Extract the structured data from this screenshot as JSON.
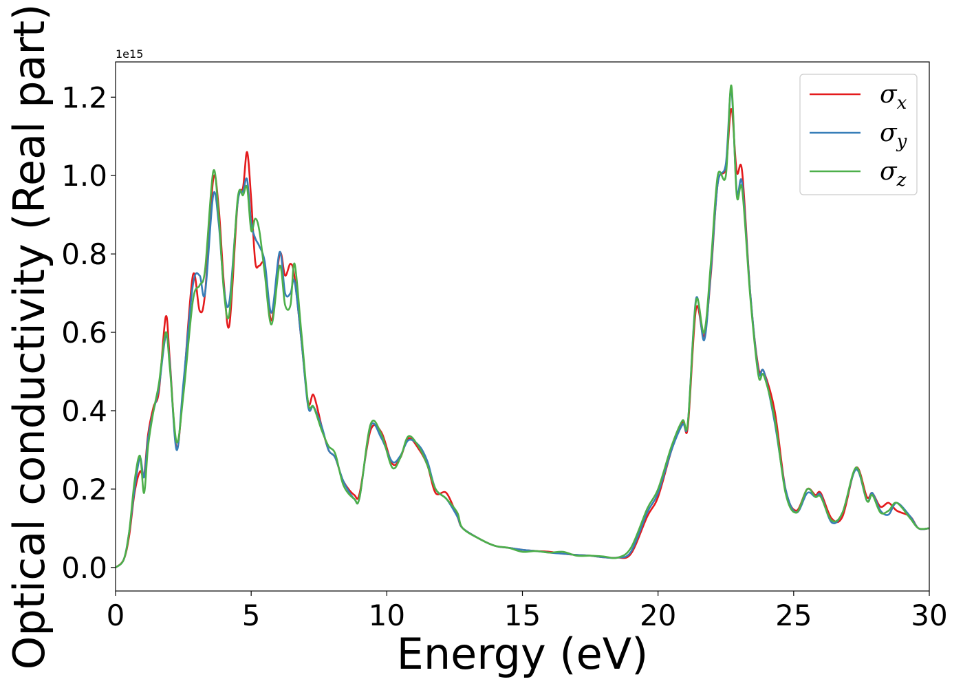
{
  "chart_data": {
    "type": "line",
    "title": "",
    "xlabel": "Energy (eV)",
    "ylabel": "Optical conductivity (Real part)",
    "y_offset_label": "1e15",
    "xlim": [
      0,
      30
    ],
    "ylim": [
      -0.06,
      1.29
    ],
    "x_ticks": [
      0,
      5,
      10,
      15,
      20,
      25,
      30
    ],
    "x_tick_labels": [
      "0",
      "5",
      "10",
      "15",
      "20",
      "25",
      "30"
    ],
    "y_ticks": [
      0.0,
      0.2,
      0.4,
      0.6,
      0.8,
      1.0,
      1.2
    ],
    "y_tick_labels": [
      "0.0",
      "0.2",
      "0.4",
      "0.6",
      "0.8",
      "1.0",
      "1.2"
    ],
    "grid": false,
    "legend_position": "top-right",
    "series": [
      {
        "name": "σ_x",
        "legend_base": "σ",
        "legend_sub": "x",
        "color": "#e41a1c",
        "points": [
          [
            0,
            0
          ],
          [
            0.3,
            0.02
          ],
          [
            0.5,
            0.08
          ],
          [
            0.7,
            0.19
          ],
          [
            0.9,
            0.245
          ],
          [
            1.05,
            0.235
          ],
          [
            1.2,
            0.34
          ],
          [
            1.4,
            0.41
          ],
          [
            1.6,
            0.45
          ],
          [
            1.85,
            0.64
          ],
          [
            2.0,
            0.53
          ],
          [
            2.25,
            0.305
          ],
          [
            2.5,
            0.46
          ],
          [
            2.85,
            0.745
          ],
          [
            3.1,
            0.655
          ],
          [
            3.3,
            0.7
          ],
          [
            3.6,
            0.99
          ],
          [
            3.8,
            0.92
          ],
          [
            4.0,
            0.72
          ],
          [
            4.2,
            0.62
          ],
          [
            4.5,
            0.93
          ],
          [
            4.7,
            0.97
          ],
          [
            4.85,
            1.06
          ],
          [
            5.0,
            0.94
          ],
          [
            5.15,
            0.78
          ],
          [
            5.3,
            0.77
          ],
          [
            5.5,
            0.77
          ],
          [
            5.75,
            0.63
          ],
          [
            6.05,
            0.8
          ],
          [
            6.25,
            0.745
          ],
          [
            6.45,
            0.775
          ],
          [
            6.6,
            0.74
          ],
          [
            6.85,
            0.58
          ],
          [
            7.1,
            0.42
          ],
          [
            7.3,
            0.44
          ],
          [
            7.6,
            0.36
          ],
          [
            7.85,
            0.3
          ],
          [
            8.1,
            0.28
          ],
          [
            8.4,
            0.22
          ],
          [
            8.8,
            0.185
          ],
          [
            9.0,
            0.19
          ],
          [
            9.4,
            0.35
          ],
          [
            9.8,
            0.345
          ],
          [
            10.2,
            0.265
          ],
          [
            10.5,
            0.28
          ],
          [
            10.8,
            0.33
          ],
          [
            11.2,
            0.3
          ],
          [
            11.5,
            0.26
          ],
          [
            11.8,
            0.19
          ],
          [
            12.2,
            0.19
          ],
          [
            12.6,
            0.13
          ],
          [
            12.8,
            0.1
          ],
          [
            13.5,
            0.07
          ],
          [
            14.0,
            0.055
          ],
          [
            14.5,
            0.05
          ],
          [
            15.0,
            0.045
          ],
          [
            15.5,
            0.042
          ],
          [
            16.0,
            0.04
          ],
          [
            16.5,
            0.035
          ],
          [
            17.0,
            0.032
          ],
          [
            17.5,
            0.03
          ],
          [
            18.0,
            0.026
          ],
          [
            18.5,
            0.025
          ],
          [
            19.0,
            0.035
          ],
          [
            19.6,
            0.13
          ],
          [
            20.0,
            0.18
          ],
          [
            20.5,
            0.3
          ],
          [
            20.9,
            0.37
          ],
          [
            21.1,
            0.36
          ],
          [
            21.4,
            0.66
          ],
          [
            21.7,
            0.59
          ],
          [
            21.95,
            0.75
          ],
          [
            22.2,
            0.98
          ],
          [
            22.5,
            1.02
          ],
          [
            22.7,
            1.17
          ],
          [
            22.9,
            1.01
          ],
          [
            23.1,
            1.01
          ],
          [
            23.4,
            0.7
          ],
          [
            23.7,
            0.51
          ],
          [
            23.9,
            0.5
          ],
          [
            24.3,
            0.4
          ],
          [
            24.7,
            0.2
          ],
          [
            25.1,
            0.145
          ],
          [
            25.5,
            0.2
          ],
          [
            25.8,
            0.185
          ],
          [
            26.0,
            0.19
          ],
          [
            26.4,
            0.125
          ],
          [
            26.8,
            0.13
          ],
          [
            27.3,
            0.255
          ],
          [
            27.7,
            0.18
          ],
          [
            27.9,
            0.19
          ],
          [
            28.2,
            0.155
          ],
          [
            28.5,
            0.165
          ],
          [
            28.8,
            0.145
          ],
          [
            29.3,
            0.13
          ],
          [
            29.6,
            0.1
          ],
          [
            30,
            0.1
          ]
        ]
      },
      {
        "name": "σ_y",
        "legend_base": "σ",
        "legend_sub": "y",
        "color": "#377eb8",
        "points": [
          [
            0,
            0
          ],
          [
            0.3,
            0.02
          ],
          [
            0.5,
            0.09
          ],
          [
            0.7,
            0.2
          ],
          [
            0.9,
            0.28
          ],
          [
            1.05,
            0.23
          ],
          [
            1.2,
            0.33
          ],
          [
            1.4,
            0.4
          ],
          [
            1.6,
            0.46
          ],
          [
            1.85,
            0.59
          ],
          [
            2.0,
            0.52
          ],
          [
            2.25,
            0.3
          ],
          [
            2.5,
            0.47
          ],
          [
            2.85,
            0.72
          ],
          [
            3.1,
            0.745
          ],
          [
            3.3,
            0.7
          ],
          [
            3.6,
            0.95
          ],
          [
            3.8,
            0.88
          ],
          [
            4.0,
            0.71
          ],
          [
            4.2,
            0.68
          ],
          [
            4.5,
            0.93
          ],
          [
            4.7,
            0.96
          ],
          [
            4.85,
            0.99
          ],
          [
            5.0,
            0.88
          ],
          [
            5.15,
            0.84
          ],
          [
            5.3,
            0.82
          ],
          [
            5.5,
            0.78
          ],
          [
            5.75,
            0.65
          ],
          [
            6.05,
            0.805
          ],
          [
            6.25,
            0.7
          ],
          [
            6.45,
            0.7
          ],
          [
            6.6,
            0.73
          ],
          [
            6.85,
            0.58
          ],
          [
            7.1,
            0.41
          ],
          [
            7.3,
            0.41
          ],
          [
            7.6,
            0.36
          ],
          [
            7.85,
            0.3
          ],
          [
            8.1,
            0.28
          ],
          [
            8.4,
            0.22
          ],
          [
            8.8,
            0.175
          ],
          [
            9.0,
            0.18
          ],
          [
            9.4,
            0.36
          ],
          [
            9.8,
            0.33
          ],
          [
            10.2,
            0.27
          ],
          [
            10.5,
            0.285
          ],
          [
            10.8,
            0.325
          ],
          [
            11.2,
            0.31
          ],
          [
            11.5,
            0.27
          ],
          [
            11.8,
            0.2
          ],
          [
            12.2,
            0.175
          ],
          [
            12.6,
            0.13
          ],
          [
            12.8,
            0.1
          ],
          [
            13.5,
            0.07
          ],
          [
            14.0,
            0.055
          ],
          [
            14.5,
            0.05
          ],
          [
            15.0,
            0.045
          ],
          [
            15.5,
            0.042
          ],
          [
            16.0,
            0.038
          ],
          [
            16.5,
            0.035
          ],
          [
            17.0,
            0.032
          ],
          [
            17.5,
            0.03
          ],
          [
            18.0,
            0.026
          ],
          [
            18.5,
            0.025
          ],
          [
            19.0,
            0.04
          ],
          [
            19.6,
            0.14
          ],
          [
            20.0,
            0.19
          ],
          [
            20.5,
            0.3
          ],
          [
            20.9,
            0.365
          ],
          [
            21.1,
            0.37
          ],
          [
            21.4,
            0.685
          ],
          [
            21.7,
            0.58
          ],
          [
            21.95,
            0.76
          ],
          [
            22.2,
            0.98
          ],
          [
            22.5,
            1.03
          ],
          [
            22.7,
            1.22
          ],
          [
            22.9,
            0.96
          ],
          [
            23.1,
            0.98
          ],
          [
            23.4,
            0.7
          ],
          [
            23.7,
            0.5
          ],
          [
            23.9,
            0.5
          ],
          [
            24.3,
            0.37
          ],
          [
            24.7,
            0.2
          ],
          [
            25.1,
            0.14
          ],
          [
            25.5,
            0.19
          ],
          [
            25.8,
            0.18
          ],
          [
            26.0,
            0.185
          ],
          [
            26.4,
            0.115
          ],
          [
            26.8,
            0.14
          ],
          [
            27.3,
            0.25
          ],
          [
            27.7,
            0.17
          ],
          [
            27.9,
            0.19
          ],
          [
            28.2,
            0.145
          ],
          [
            28.5,
            0.135
          ],
          [
            28.8,
            0.165
          ],
          [
            29.3,
            0.13
          ],
          [
            29.6,
            0.1
          ],
          [
            30,
            0.1
          ]
        ]
      },
      {
        "name": "σ_z",
        "legend_base": "σ",
        "legend_sub": "z",
        "color": "#4daf4a",
        "points": [
          [
            0,
            0
          ],
          [
            0.3,
            0.02
          ],
          [
            0.5,
            0.09
          ],
          [
            0.7,
            0.22
          ],
          [
            0.9,
            0.285
          ],
          [
            1.05,
            0.19
          ],
          [
            1.2,
            0.31
          ],
          [
            1.4,
            0.4
          ],
          [
            1.6,
            0.47
          ],
          [
            1.85,
            0.6
          ],
          [
            2.0,
            0.51
          ],
          [
            2.25,
            0.32
          ],
          [
            2.5,
            0.44
          ],
          [
            2.85,
            0.68
          ],
          [
            3.1,
            0.72
          ],
          [
            3.3,
            0.76
          ],
          [
            3.6,
            1.01
          ],
          [
            3.8,
            0.9
          ],
          [
            4.0,
            0.7
          ],
          [
            4.2,
            0.65
          ],
          [
            4.5,
            0.94
          ],
          [
            4.7,
            0.95
          ],
          [
            4.85,
            0.97
          ],
          [
            5.0,
            0.86
          ],
          [
            5.15,
            0.89
          ],
          [
            5.3,
            0.86
          ],
          [
            5.5,
            0.75
          ],
          [
            5.75,
            0.62
          ],
          [
            6.05,
            0.77
          ],
          [
            6.25,
            0.67
          ],
          [
            6.45,
            0.67
          ],
          [
            6.6,
            0.775
          ],
          [
            6.85,
            0.6
          ],
          [
            7.1,
            0.42
          ],
          [
            7.3,
            0.41
          ],
          [
            7.6,
            0.35
          ],
          [
            7.85,
            0.31
          ],
          [
            8.1,
            0.29
          ],
          [
            8.4,
            0.21
          ],
          [
            8.8,
            0.175
          ],
          [
            9.0,
            0.18
          ],
          [
            9.4,
            0.365
          ],
          [
            9.8,
            0.34
          ],
          [
            10.2,
            0.255
          ],
          [
            10.5,
            0.28
          ],
          [
            10.8,
            0.335
          ],
          [
            11.2,
            0.305
          ],
          [
            11.5,
            0.26
          ],
          [
            11.8,
            0.2
          ],
          [
            12.2,
            0.175
          ],
          [
            12.6,
            0.14
          ],
          [
            12.8,
            0.1
          ],
          [
            13.5,
            0.07
          ],
          [
            14.0,
            0.055
          ],
          [
            14.5,
            0.05
          ],
          [
            15.0,
            0.04
          ],
          [
            15.5,
            0.042
          ],
          [
            16.0,
            0.038
          ],
          [
            16.5,
            0.04
          ],
          [
            17.0,
            0.03
          ],
          [
            17.5,
            0.03
          ],
          [
            18.0,
            0.028
          ],
          [
            18.5,
            0.025
          ],
          [
            19.0,
            0.05
          ],
          [
            19.6,
            0.15
          ],
          [
            20.0,
            0.2
          ],
          [
            20.5,
            0.31
          ],
          [
            20.9,
            0.375
          ],
          [
            21.1,
            0.37
          ],
          [
            21.4,
            0.68
          ],
          [
            21.7,
            0.6
          ],
          [
            21.95,
            0.78
          ],
          [
            22.2,
            1.0
          ],
          [
            22.5,
            1.0
          ],
          [
            22.7,
            1.23
          ],
          [
            22.9,
            0.95
          ],
          [
            23.1,
            0.965
          ],
          [
            23.4,
            0.69
          ],
          [
            23.7,
            0.49
          ],
          [
            23.9,
            0.49
          ],
          [
            24.3,
            0.38
          ],
          [
            24.7,
            0.19
          ],
          [
            25.1,
            0.14
          ],
          [
            25.5,
            0.2
          ],
          [
            25.8,
            0.18
          ],
          [
            26.0,
            0.18
          ],
          [
            26.4,
            0.12
          ],
          [
            26.8,
            0.14
          ],
          [
            27.3,
            0.255
          ],
          [
            27.7,
            0.17
          ],
          [
            27.9,
            0.185
          ],
          [
            28.2,
            0.14
          ],
          [
            28.5,
            0.145
          ],
          [
            28.8,
            0.165
          ],
          [
            29.3,
            0.125
          ],
          [
            29.6,
            0.1
          ],
          [
            30,
            0.1
          ]
        ]
      }
    ]
  }
}
